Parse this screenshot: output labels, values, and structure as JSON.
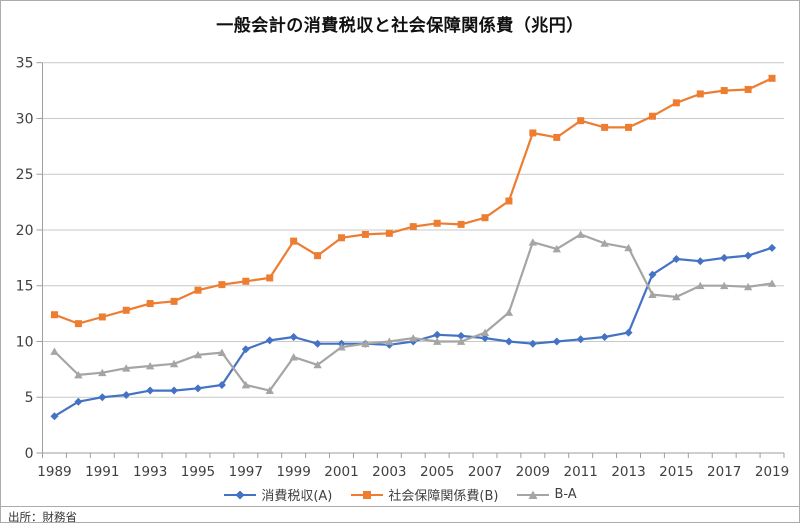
{
  "window": {
    "source_note": "出所：財務省"
  },
  "chart_data": {
    "type": "line",
    "title": "一般会計の消費税収と社会保障関係費（兆円）",
    "x": [
      1989,
      1990,
      1991,
      1992,
      1993,
      1994,
      1995,
      1996,
      1997,
      1998,
      1999,
      2000,
      2001,
      2002,
      2003,
      2004,
      2005,
      2006,
      2007,
      2008,
      2009,
      2010,
      2011,
      2012,
      2013,
      2014,
      2015,
      2016,
      2017,
      2018,
      2019
    ],
    "x_tick_labels": [
      "1989",
      "1991",
      "1993",
      "1995",
      "1997",
      "1999",
      "2001",
      "2003",
      "2005",
      "2007",
      "2009",
      "2011",
      "2013",
      "2015",
      "2017",
      "2019"
    ],
    "ylim": [
      0,
      35
    ],
    "y_ticks": [
      0,
      5,
      10,
      15,
      20,
      25,
      30,
      35
    ],
    "grid": true,
    "legend_position": "bottom",
    "series": [
      {
        "name": "消費税収(A)",
        "color": "#4472C4",
        "marker": "diamond",
        "values": [
          3.3,
          4.6,
          5.0,
          5.2,
          5.6,
          5.6,
          5.8,
          6.1,
          9.3,
          10.1,
          10.4,
          9.8,
          9.8,
          9.8,
          9.7,
          10.0,
          10.6,
          10.5,
          10.3,
          10.0,
          9.8,
          10.0,
          10.2,
          10.4,
          10.8,
          16.0,
          17.4,
          17.2,
          17.5,
          17.7,
          18.4
        ]
      },
      {
        "name": "社会保障関係費(B)",
        "color": "#ED7D31",
        "marker": "square",
        "values": [
          12.4,
          11.6,
          12.2,
          12.8,
          13.4,
          13.6,
          14.6,
          15.1,
          15.4,
          15.7,
          19.0,
          17.7,
          19.3,
          19.6,
          19.7,
          20.3,
          20.6,
          20.5,
          21.1,
          22.6,
          28.7,
          28.3,
          29.8,
          29.2,
          29.2,
          30.2,
          31.4,
          32.2,
          32.5,
          32.6,
          33.6
        ]
      },
      {
        "name": "B-A",
        "color": "#A5A5A5",
        "marker": "triangle",
        "values": [
          9.1,
          7.0,
          7.2,
          7.6,
          7.8,
          8.0,
          8.8,
          9.0,
          6.1,
          5.6,
          8.6,
          7.9,
          9.5,
          9.8,
          10.0,
          10.3,
          10.0,
          10.0,
          10.8,
          12.6,
          18.9,
          18.3,
          19.6,
          18.8,
          18.4,
          14.2,
          14.0,
          15.0,
          15.0,
          14.9,
          15.2
        ]
      }
    ]
  },
  "colors": {
    "gridline": "#c9c9c9",
    "axis": "#9e9e9e",
    "tick_text": "#404040",
    "title_text": "#111111"
  }
}
